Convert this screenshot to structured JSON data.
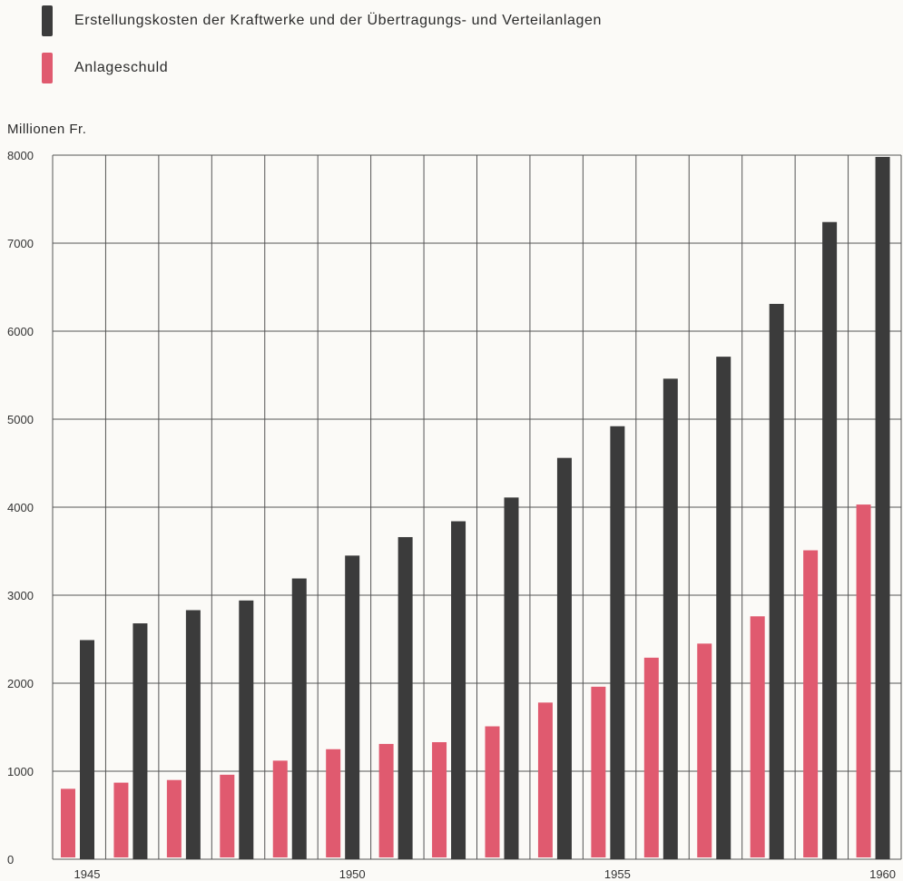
{
  "legend": {
    "items": [
      {
        "label": "Erstellungskosten der Kraftwerke und der Übertragungs- und Verteilanlagen",
        "color": "#3b3b3b"
      },
      {
        "label": "Anlageschuld",
        "color": "#e05a6f"
      }
    ]
  },
  "chart_data": {
    "type": "bar",
    "title": "",
    "ylabel": "Millionen Fr.",
    "xlabel": "",
    "ylim": [
      0,
      8000
    ],
    "yticks": [
      0,
      1000,
      2000,
      3000,
      4000,
      5000,
      6000,
      7000,
      8000
    ],
    "xtick_labels": [
      "1945",
      "1950",
      "1955",
      "1960"
    ],
    "grid": true,
    "legend_position": "top-left",
    "categories": [
      "1945",
      "1946",
      "1947",
      "1948",
      "1949",
      "1950",
      "1951",
      "1952",
      "1953",
      "1954",
      "1955",
      "1956",
      "1957",
      "1958",
      "1959",
      "1960"
    ],
    "series": [
      {
        "name": "Anlageschuld",
        "color": "#e05a6f",
        "values": [
          800,
          870,
          900,
          960,
          1120,
          1250,
          1310,
          1330,
          1510,
          1780,
          1960,
          2290,
          2450,
          2760,
          3510,
          4030
        ]
      },
      {
        "name": "Erstellungskosten der Kraftwerke und der Übertragungs- und Verteilanlagen",
        "color": "#3b3b3b",
        "values": [
          2490,
          2680,
          2830,
          2940,
          3190,
          3450,
          3660,
          3840,
          4110,
          4560,
          4920,
          5460,
          5710,
          6310,
          7240,
          7980
        ]
      }
    ]
  }
}
